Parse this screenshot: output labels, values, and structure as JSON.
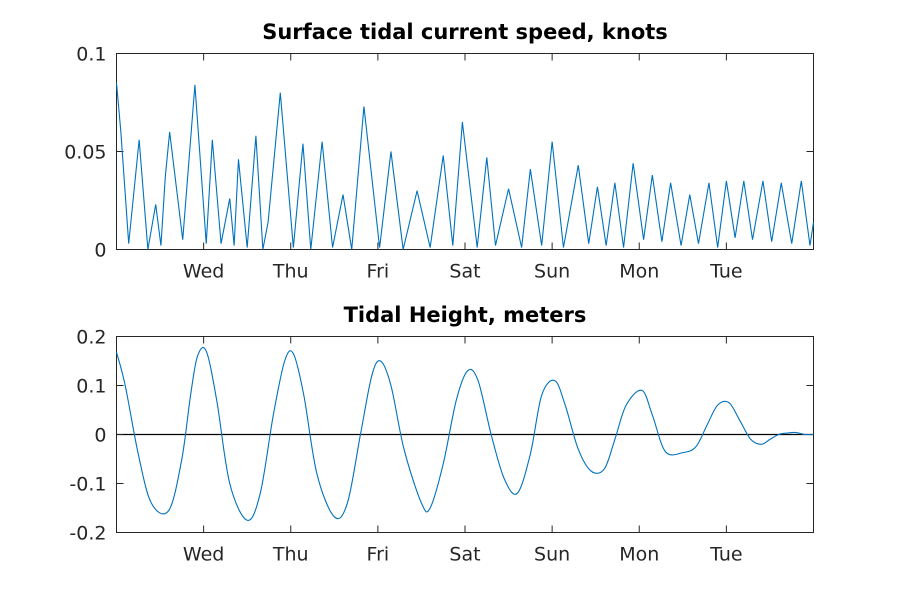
{
  "chart_data": [
    {
      "type": "line",
      "title": "Surface tidal current speed, knots",
      "xlabel": "",
      "ylabel": "",
      "x_unit": "day",
      "x_range": [
        0,
        8
      ],
      "xticks": [
        1,
        2,
        3,
        4,
        5,
        6,
        7
      ],
      "xtick_labels": [
        "Wed",
        "Thu",
        "Fri",
        "Sat",
        "Sun",
        "Mon",
        "Tue"
      ],
      "ylim": [
        0,
        0.1
      ],
      "yticks": [
        0,
        0.05,
        0.1
      ],
      "ytick_labels": [
        "0",
        "0.05",
        "0.1"
      ],
      "grid": false,
      "line_color": "#0072BD",
      "series": [
        {
          "x": [
            0.0,
            0.05,
            0.14,
            0.26,
            0.36,
            0.45,
            0.51,
            0.56,
            0.61,
            0.76,
            0.9,
            1.03,
            1.1,
            1.2,
            1.3,
            1.35,
            1.4,
            1.5,
            1.6,
            1.68,
            1.74,
            1.88,
            2.03,
            2.14,
            2.23,
            2.36,
            2.48,
            2.6,
            2.7,
            2.84,
            3.02,
            3.15,
            3.29,
            3.45,
            3.6,
            3.75,
            3.86,
            3.97,
            4.14,
            4.25,
            4.35,
            4.5,
            4.65,
            4.75,
            4.88,
            5.0,
            5.13,
            5.3,
            5.42,
            5.52,
            5.62,
            5.72,
            5.82,
            5.93,
            6.05,
            6.15,
            6.26,
            6.36,
            6.48,
            6.58,
            6.68,
            6.8,
            6.9,
            7.0,
            7.1,
            7.2,
            7.3,
            7.42,
            7.52,
            7.63,
            7.75,
            7.86,
            7.96,
            8.0
          ],
          "y": [
            0.085,
            0.06,
            0.003,
            0.056,
            0.0,
            0.023,
            0.002,
            0.037,
            0.06,
            0.005,
            0.084,
            0.003,
            0.056,
            0.003,
            0.026,
            0.002,
            0.046,
            0.001,
            0.058,
            0.0,
            0.014,
            0.08,
            0.001,
            0.054,
            0.0,
            0.055,
            0.001,
            0.028,
            0.0,
            0.073,
            0.001,
            0.05,
            0.0,
            0.03,
            0.001,
            0.048,
            0.002,
            0.065,
            0.001,
            0.047,
            0.002,
            0.031,
            0.001,
            0.041,
            0.002,
            0.055,
            0.001,
            0.043,
            0.003,
            0.032,
            0.002,
            0.034,
            0.001,
            0.044,
            0.005,
            0.038,
            0.004,
            0.034,
            0.002,
            0.028,
            0.003,
            0.034,
            0.001,
            0.035,
            0.006,
            0.035,
            0.005,
            0.035,
            0.004,
            0.034,
            0.003,
            0.035,
            0.002,
            0.014
          ]
        }
      ]
    },
    {
      "type": "line",
      "title": "Tidal Height, meters",
      "xlabel": "",
      "ylabel": "",
      "x_unit": "day",
      "x_range": [
        0,
        8
      ],
      "xticks": [
        1,
        2,
        3,
        4,
        5,
        6,
        7
      ],
      "xtick_labels": [
        "Wed",
        "Thu",
        "Fri",
        "Sat",
        "Sun",
        "Mon",
        "Tue"
      ],
      "ylim": [
        -0.2,
        0.2
      ],
      "yticks": [
        -0.2,
        -0.1,
        0,
        0.1,
        0.2
      ],
      "ytick_labels": [
        "-0.2",
        "-0.1",
        "0",
        "0.1",
        "0.2"
      ],
      "grid": false,
      "reference_line_y": 0,
      "line_color": "#0072BD",
      "series": [
        {
          "x": [
            0.0,
            0.1,
            0.25,
            0.4,
            0.6,
            0.75,
            0.85,
            0.93,
            1.03,
            1.15,
            1.3,
            1.5,
            1.65,
            1.8,
            1.93,
            2.03,
            2.15,
            2.3,
            2.5,
            2.65,
            2.8,
            2.93,
            3.03,
            3.15,
            3.3,
            3.5,
            3.6,
            3.75,
            3.9,
            4.03,
            4.15,
            4.3,
            4.45,
            4.6,
            4.75,
            4.88,
            5.03,
            5.15,
            5.3,
            5.45,
            5.6,
            5.72,
            5.85,
            6.03,
            6.15,
            6.3,
            6.5,
            6.65,
            6.78,
            6.9,
            7.03,
            7.15,
            7.28,
            7.4,
            7.5,
            7.6,
            7.7,
            7.8,
            7.9,
            8.0
          ],
          "y": [
            0.168,
            0.1,
            -0.04,
            -0.14,
            -0.155,
            -0.05,
            0.08,
            0.16,
            0.17,
            0.07,
            -0.1,
            -0.175,
            -0.12,
            0.04,
            0.15,
            0.165,
            0.08,
            -0.08,
            -0.168,
            -0.14,
            0.0,
            0.12,
            0.15,
            0.1,
            -0.03,
            -0.14,
            -0.15,
            -0.06,
            0.07,
            0.13,
            0.11,
            0.0,
            -0.09,
            -0.12,
            -0.04,
            0.08,
            0.11,
            0.06,
            -0.03,
            -0.075,
            -0.07,
            -0.01,
            0.06,
            0.09,
            0.04,
            -0.035,
            -0.037,
            -0.025,
            0.02,
            0.06,
            0.065,
            0.03,
            -0.01,
            -0.02,
            -0.01,
            0.0,
            0.003,
            0.004,
            0.0,
            0.0
          ]
        }
      ]
    }
  ]
}
